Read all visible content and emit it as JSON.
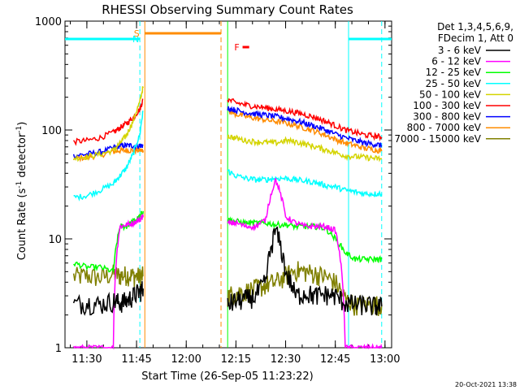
{
  "chart_data": {
    "type": "line",
    "title": "RHESSI Observing Summary Count Rates",
    "xlabel": "Start Time (26-Sep-05 11:23:22)",
    "ylabel": "Count Rate (s⁻¹ detector⁻¹)",
    "ylabel_parts": [
      "Count Rate (s",
      "-1",
      " detector",
      "-1",
      ")"
    ],
    "yscale": "log",
    "ylim": [
      1,
      1000
    ],
    "xlim": [
      683.4,
      782
    ],
    "x_units": "minutes since 00:00 UT",
    "x_ticks": [
      {
        "value": 690,
        "label": "11:30"
      },
      {
        "value": 705,
        "label": "11:45"
      },
      {
        "value": 720,
        "label": "12:00"
      },
      {
        "value": 735,
        "label": "12:15"
      },
      {
        "value": 750,
        "label": "12:30"
      },
      {
        "value": 765,
        "label": "12:45"
      },
      {
        "value": 780,
        "label": "13:00"
      }
    ],
    "y_ticks": [
      {
        "value": 1,
        "label": "1"
      },
      {
        "value": 10,
        "label": "10"
      },
      {
        "value": 100,
        "label": "100"
      },
      {
        "value": 1000,
        "label": "1000"
      }
    ],
    "legend_header": [
      "Det 1,3,4,5,6,9,",
      "FDecim 1, Att 0"
    ],
    "legend_position": "right",
    "series": [
      {
        "name": "3 - 6 keV",
        "color": "#000000"
      },
      {
        "name": "6 - 12 keV",
        "color": "#ff00ff"
      },
      {
        "name": "12 - 25 keV",
        "color": "#00ff00"
      },
      {
        "name": "25 - 50 keV",
        "color": "#00ffff"
      },
      {
        "name": "50 - 100 keV",
        "color": "#d4d400"
      },
      {
        "name": "100 - 300 keV",
        "color": "#ff0000"
      },
      {
        "name": "300 - 800 keV",
        "color": "#0000ff"
      },
      {
        "name": "800 - 7000 keV",
        "color": "#ff8c00"
      },
      {
        "name": "7000 - 15000 keV",
        "color": "#808000"
      }
    ],
    "segments": [
      {
        "x": [
          686,
          690,
          694,
          698,
          700,
          702,
          704,
          706,
          707
        ],
        "values": [
          [
            2.5,
            2.6,
            2.5,
            2.7,
            2.6,
            2.7,
            3.0,
            3.3,
            3.5
          ],
          [
            1.0,
            1.0,
            1.0,
            1.0,
            13.0,
            13.5,
            14.0,
            15.0,
            16.5
          ],
          [
            6.0,
            5.5,
            5.5,
            5.0,
            13.0,
            13.0,
            14.5,
            16.0,
            18.0
          ],
          [
            24,
            25,
            28,
            32,
            38,
            45,
            60,
            90,
            150
          ],
          [
            55,
            57,
            60,
            65,
            75,
            90,
            120,
            180,
            250
          ],
          [
            78,
            80,
            85,
            95,
            105,
            115,
            130,
            155,
            190
          ],
          [
            58,
            60,
            63,
            68,
            72,
            72,
            72,
            72,
            72
          ],
          [
            55,
            56,
            59,
            63,
            65,
            65,
            65,
            65,
            65
          ],
          [
            4.5,
            4.6,
            4.4,
            4.8,
            4.6,
            4.7,
            4.6,
            4.5,
            4.6
          ]
        ]
      },
      {
        "x": [
          732.5,
          735,
          738,
          741,
          744,
          747,
          750,
          753,
          756,
          759,
          762,
          765,
          768,
          771,
          774,
          777,
          779
        ],
        "values": [
          [
            2.5,
            2.7,
            2.8,
            3.0,
            4.0,
            12.0,
            5.0,
            3.0,
            3.2,
            3.0,
            3.1,
            3.0,
            2.6,
            2.5,
            2.5,
            2.4,
            2.4
          ],
          [
            14,
            14,
            13,
            13,
            15,
            35,
            16,
            14,
            13,
            13,
            13,
            12,
            1.0,
            1.0,
            1.0,
            1.0,
            1.0
          ],
          [
            15,
            14.5,
            14,
            14,
            14,
            13.5,
            13.5,
            13,
            13,
            13,
            12.5,
            10,
            7.5,
            6.5,
            6.5,
            6.5,
            6.5
          ],
          [
            42,
            38,
            36,
            35,
            35,
            36,
            36,
            35,
            34,
            33,
            31,
            30,
            28,
            27,
            26,
            26,
            26
          ],
          [
            88,
            84,
            80,
            78,
            77,
            76,
            80,
            78,
            74,
            70,
            66,
            62,
            58,
            57,
            56,
            55,
            54
          ],
          [
            190,
            178,
            170,
            165,
            160,
            155,
            150,
            145,
            138,
            130,
            120,
            110,
            100,
            95,
            90,
            88,
            86
          ],
          [
            160,
            152,
            145,
            140,
            137,
            133,
            128,
            122,
            115,
            108,
            100,
            92,
            85,
            80,
            76,
            74,
            72
          ],
          [
            150,
            140,
            133,
            128,
            124,
            120,
            116,
            110,
            104,
            97,
            90,
            82,
            76,
            72,
            68,
            66,
            64
          ],
          [
            3.0,
            3.2,
            3.3,
            3.5,
            3.8,
            4.0,
            4.6,
            5.2,
            5.0,
            4.8,
            4.5,
            4.0,
            2.8,
            2.5,
            2.5,
            2.5,
            2.5
          ]
        ]
      }
    ],
    "annotations": {
      "N": {
        "label": "N",
        "color": "#00ffff",
        "regions": [
          [
            683.4,
            706
          ],
          [
            769,
            782
          ]
        ]
      },
      "S": {
        "label": "S",
        "color": "#ff8c00",
        "region": [
          707.5,
          730.5
        ]
      },
      "F": {
        "label": "F",
        "color": "#ff0000",
        "marker_x": [
          737,
          739
        ]
      }
    },
    "vertical_lines": [
      {
        "x": 706,
        "style": "dashed",
        "color": "#00ffff"
      },
      {
        "x": 779,
        "style": "dashed",
        "color": "#00ffff"
      },
      {
        "x": 707.5,
        "style": "solid",
        "color": "#ff8c00"
      },
      {
        "x": 730.5,
        "style": "dashed",
        "color": "#ff8c00"
      },
      {
        "x": 732.5,
        "style": "solid",
        "color": "#00ff00"
      },
      {
        "x": 769,
        "style": "solid",
        "color": "#00ffff"
      }
    ]
  },
  "footer": {
    "timestamp": "20-Oct-2021 13:38"
  }
}
